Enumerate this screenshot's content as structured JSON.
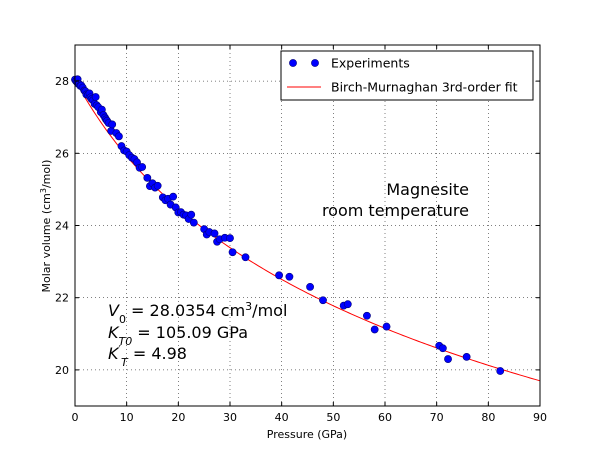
{
  "chart_data": {
    "type": "scatter",
    "xlabel": "Pressure (GPa)",
    "ylabel_main": "Molar volume (cm",
    "ylabel_sup": "3",
    "ylabel_tail": "/mol)",
    "xlim": [
      0,
      90
    ],
    "ylim": [
      19,
      29
    ],
    "xticks": [
      0,
      10,
      20,
      30,
      40,
      50,
      60,
      70,
      80,
      90
    ],
    "yticks": [
      20,
      22,
      24,
      26,
      28
    ],
    "grid": true,
    "legend_position": "top-right",
    "colors": {
      "points": "#0000ff",
      "points_edge": "#00007a",
      "fit": "#ff0000"
    },
    "fit": {
      "name": "Birch-Murnaghan 3rd-order fit",
      "model": "birch-murnaghan-3rd-order",
      "V0": 28.0354,
      "K0": 105.09,
      "Kp": 4.98,
      "x_range": [
        0,
        90
      ]
    },
    "series": [
      {
        "name": "Experiments",
        "points": [
          [
            0.0,
            28.04
          ],
          [
            0.2,
            28.0
          ],
          [
            0.4,
            27.97
          ],
          [
            0.5,
            28.05
          ],
          [
            0.6,
            27.93
          ],
          [
            0.8,
            27.92
          ],
          [
            1.0,
            27.87
          ],
          [
            1.2,
            27.88
          ],
          [
            1.5,
            27.82
          ],
          [
            1.8,
            27.74
          ],
          [
            2.0,
            27.72
          ],
          [
            2.2,
            27.63
          ],
          [
            2.5,
            27.62
          ],
          [
            2.8,
            27.66
          ],
          [
            3.0,
            27.55
          ],
          [
            3.2,
            27.5
          ],
          [
            3.5,
            27.47
          ],
          [
            3.8,
            27.37
          ],
          [
            4.0,
            27.56
          ],
          [
            4.2,
            27.33
          ],
          [
            4.5,
            27.28
          ],
          [
            5.0,
            27.14
          ],
          [
            5.2,
            27.21
          ],
          [
            5.5,
            27.06
          ],
          [
            5.8,
            26.99
          ],
          [
            6.0,
            26.94
          ],
          [
            6.2,
            26.9
          ],
          [
            6.5,
            26.84
          ],
          [
            7.0,
            26.62
          ],
          [
            7.2,
            26.8
          ],
          [
            8.0,
            26.56
          ],
          [
            8.5,
            26.47
          ],
          [
            9.0,
            26.2
          ],
          [
            9.5,
            26.08
          ],
          [
            10.0,
            26.05
          ],
          [
            10.5,
            25.95
          ],
          [
            11.0,
            25.88
          ],
          [
            11.5,
            25.84
          ],
          [
            12.0,
            25.75
          ],
          [
            12.5,
            25.6
          ],
          [
            13.0,
            25.62
          ],
          [
            14.0,
            25.32
          ],
          [
            14.5,
            25.09
          ],
          [
            15.0,
            25.17
          ],
          [
            15.5,
            25.05
          ],
          [
            16.0,
            25.1
          ],
          [
            17.0,
            24.78
          ],
          [
            17.5,
            24.7
          ],
          [
            18.0,
            24.74
          ],
          [
            18.5,
            24.58
          ],
          [
            19.0,
            24.8
          ],
          [
            19.5,
            24.5
          ],
          [
            20.0,
            24.36
          ],
          [
            20.5,
            24.37
          ],
          [
            21.0,
            24.3
          ],
          [
            21.5,
            24.28
          ],
          [
            22.0,
            24.18
          ],
          [
            22.5,
            24.3
          ],
          [
            23.0,
            24.08
          ],
          [
            25.0,
            23.9
          ],
          [
            25.5,
            23.75
          ],
          [
            26.0,
            23.82
          ],
          [
            27.0,
            23.78
          ],
          [
            27.5,
            23.55
          ],
          [
            28.0,
            23.62
          ],
          [
            29.0,
            23.66
          ],
          [
            30.0,
            23.65
          ],
          [
            30.5,
            23.26
          ],
          [
            33.0,
            23.12
          ],
          [
            39.5,
            22.62
          ],
          [
            41.5,
            22.58
          ],
          [
            45.5,
            22.3
          ],
          [
            48.0,
            21.93
          ],
          [
            52.0,
            21.78
          ],
          [
            52.8,
            21.82
          ],
          [
            56.5,
            21.5
          ],
          [
            58.0,
            21.12
          ],
          [
            60.3,
            21.2
          ],
          [
            70.5,
            20.67
          ],
          [
            71.2,
            20.6
          ],
          [
            72.2,
            20.3
          ],
          [
            75.8,
            20.36
          ],
          [
            82.3,
            19.97
          ]
        ]
      }
    ],
    "legend": [
      {
        "label": "Experiments",
        "kind": "marker"
      },
      {
        "label": "Birch-Murnaghan 3rd-order fit",
        "kind": "line"
      }
    ],
    "annotation": [
      "Magnesite",
      "room temperature"
    ],
    "params": {
      "v0_sym": "V",
      "v0_sub": "0",
      "v0_value": " = 28.0354 cm",
      "v0_sup": "3",
      "v0_unit": "/mol",
      "k_sym": "K",
      "k_sub": "T0",
      "k_value": " = 105.09 GPa",
      "kp_sym": "K",
      "kp_sup": "′",
      "kp_sub": "T",
      "kp_value": " = 4.98"
    }
  }
}
